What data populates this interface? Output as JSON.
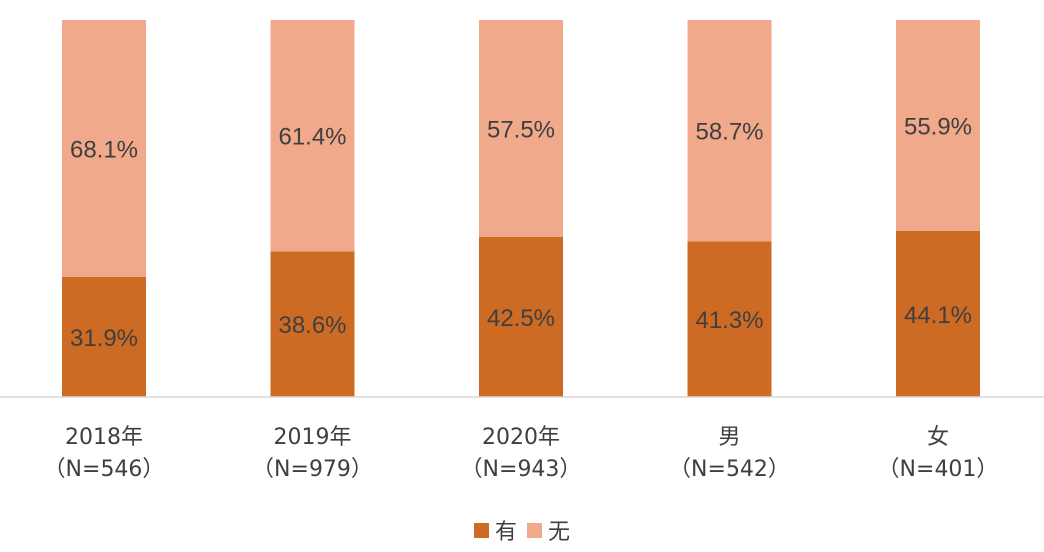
{
  "chart_data": {
    "type": "bar",
    "stacked": true,
    "categories": [
      "2018年",
      "2019年",
      "2020年",
      "男",
      "女"
    ],
    "category_sublabels": [
      "（N=546）",
      "（N=979）",
      "（N=943）",
      "（N=542）",
      "（N=401）"
    ],
    "series": [
      {
        "name": "有",
        "color": "#cd6b24",
        "values": [
          31.9,
          38.6,
          42.5,
          41.3,
          44.1
        ],
        "labels": [
          "31.9%",
          "38.6%",
          "42.5%",
          "41.3%",
          "44.1%"
        ]
      },
      {
        "name": "无",
        "color": "#f0a98a",
        "values": [
          68.1,
          61.4,
          57.5,
          58.7,
          55.9
        ],
        "labels": [
          "68.1%",
          "61.4%",
          "57.5%",
          "58.7%",
          "55.9%"
        ]
      }
    ],
    "ylim": [
      0,
      100
    ],
    "grid": false,
    "legend_position": "bottom"
  }
}
